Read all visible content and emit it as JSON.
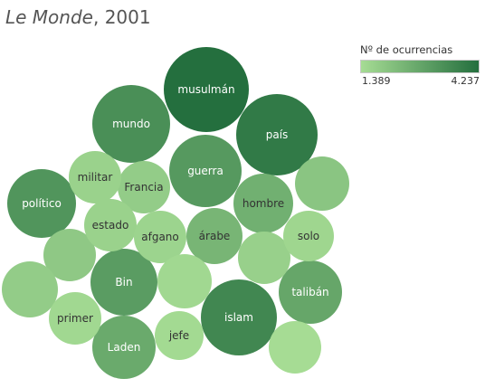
{
  "header": {
    "title_italic": "Le Monde",
    "title_rest": ", 2001"
  },
  "legend": {
    "title": "Nº de ocurrencias",
    "min_label": "1.389",
    "max_label": "4.237",
    "color_low": "#a6dc94",
    "color_high": "#246f3e"
  },
  "chart_data": {
    "type": "packed-bubble",
    "title": "Le Monde, 2001",
    "color_measure": "Nº de ocurrencias",
    "color_range": [
      1389,
      4237
    ],
    "bubbles": [
      {
        "label": "musulmán",
        "value": 4237
      },
      {
        "label": "país",
        "value": 3950
      },
      {
        "label": "islam",
        "value": 3600
      },
      {
        "label": "mundo",
        "value": 3400
      },
      {
        "label": "político",
        "value": 3250
      },
      {
        "label": "guerra",
        "value": 3150
      },
      {
        "label": "Bin",
        "value": 3050
      },
      {
        "label": "talibán",
        "value": 2800
      },
      {
        "label": "Laden",
        "value": 2700
      },
      {
        "label": "hombre",
        "value": 2550
      },
      {
        "label": "árabe",
        "value": 2400
      },
      {
        "label": "",
        "value": 2000
      },
      {
        "label": "",
        "value": 1900
      },
      {
        "label": "",
        "value": 1800
      },
      {
        "label": "Francia",
        "value": 1800
      },
      {
        "label": "",
        "value": 1700
      },
      {
        "label": "militar",
        "value": 1650
      },
      {
        "label": "estado",
        "value": 1650
      },
      {
        "label": "afgano",
        "value": 1600
      },
      {
        "label": "solo",
        "value": 1550
      },
      {
        "label": "",
        "value": 1500
      },
      {
        "label": "primer",
        "value": 1500
      },
      {
        "label": "jefe",
        "value": 1450
      },
      {
        "label": "",
        "value": 1389
      }
    ]
  }
}
